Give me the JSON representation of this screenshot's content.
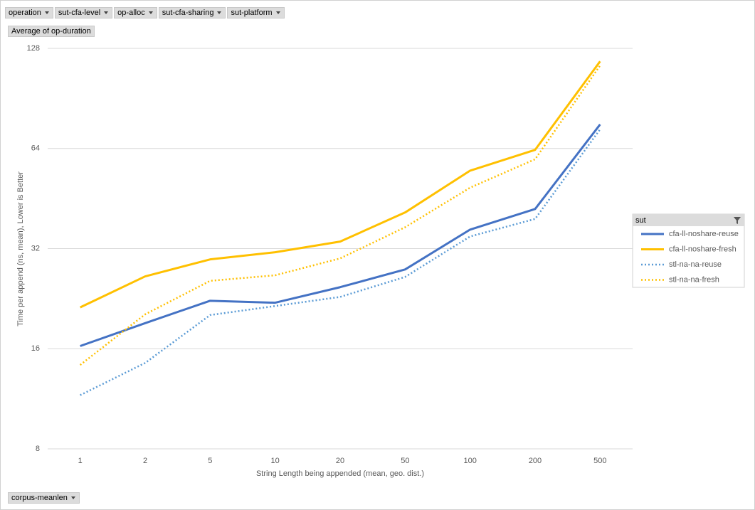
{
  "pivot_fields": {
    "filters": [
      "operation",
      "sut-cfa-level",
      "op-alloc",
      "sut-cfa-sharing",
      "sut-platform"
    ],
    "values_field": "Average of op-duration",
    "axis_field": "corpus-meanlen"
  },
  "chart_data": {
    "type": "line",
    "y_label": "Time per append (ns, mean),  Lower is Better",
    "x_label": "String Length  being appended (mean, geo. dist.)",
    "legend_title": "sut",
    "legend_position": "right",
    "categories": [
      "1",
      "2",
      "5",
      "10",
      "20",
      "50",
      "100",
      "200",
      "500"
    ],
    "y_scale": "log2",
    "ylim": [
      8,
      128
    ],
    "yticks": [
      8,
      16,
      32,
      64,
      128
    ],
    "grid": true,
    "series": [
      {
        "name": "cfa-ll-noshare-reuse",
        "color": "#4472c4",
        "style": "solid",
        "values": [
          16.3,
          19.1,
          22.3,
          22.0,
          24.5,
          27.7,
          36.5,
          42.1,
          75.6
        ]
      },
      {
        "name": "cfa-ll-noshare-fresh",
        "color": "#ffc000",
        "style": "solid",
        "values": [
          21.3,
          26.4,
          29.7,
          31.2,
          33.6,
          41.1,
          54.9,
          63.4,
          117
        ]
      },
      {
        "name": "stl-na-na-reuse",
        "color": "#5b9bd5",
        "style": "dotted",
        "values": [
          11.6,
          14.5,
          20.2,
          21.5,
          22.9,
          26.3,
          34.8,
          39.3,
          73.1
        ]
      },
      {
        "name": "stl-na-na-fresh",
        "color": "#ffc000",
        "style": "dotted",
        "values": [
          14.3,
          20.3,
          25.6,
          26.6,
          29.9,
          37.1,
          48.8,
          59.4,
          113.7
        ]
      }
    ]
  }
}
